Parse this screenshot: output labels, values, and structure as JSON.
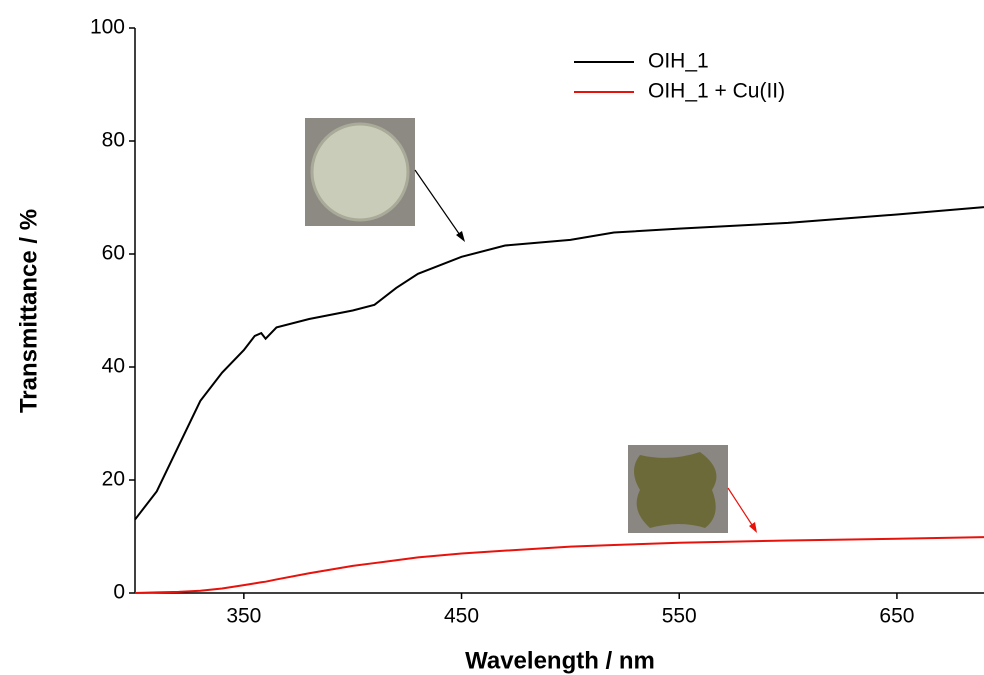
{
  "chart_data": {
    "type": "line",
    "x_label": "Wavelength / nm",
    "y_label": "Transmittance / %",
    "xlim": [
      300,
      690
    ],
    "ylim": [
      0,
      100
    ],
    "xticks": [
      350,
      450,
      550,
      650
    ],
    "yticks": [
      0,
      20,
      40,
      60,
      80,
      100
    ],
    "x": [
      300,
      310,
      320,
      330,
      340,
      350,
      355,
      358,
      360,
      365,
      380,
      400,
      410,
      420,
      430,
      450,
      470,
      500,
      520,
      550,
      600,
      650,
      690
    ],
    "series": [
      {
        "name": "OIH_1",
        "color": "#000000",
        "values": [
          13,
          18,
          26,
          34,
          39,
          43,
          45.5,
          46,
          45,
          47,
          48.5,
          50,
          51,
          54,
          56.5,
          59.5,
          61.5,
          62.5,
          63.8,
          64.5,
          65.5,
          67,
          68.3
        ]
      },
      {
        "name": "OIH_1 + Cu(II)",
        "color": "#e8120c",
        "values": [
          0,
          0.1,
          0.2,
          0.4,
          0.8,
          1.4,
          1.7,
          1.9,
          2,
          2.4,
          3.5,
          4.8,
          5.3,
          5.8,
          6.3,
          7,
          7.5,
          8.2,
          8.5,
          8.9,
          9.3,
          9.6,
          9.9
        ]
      }
    ],
    "legend": "upper-right"
  }
}
